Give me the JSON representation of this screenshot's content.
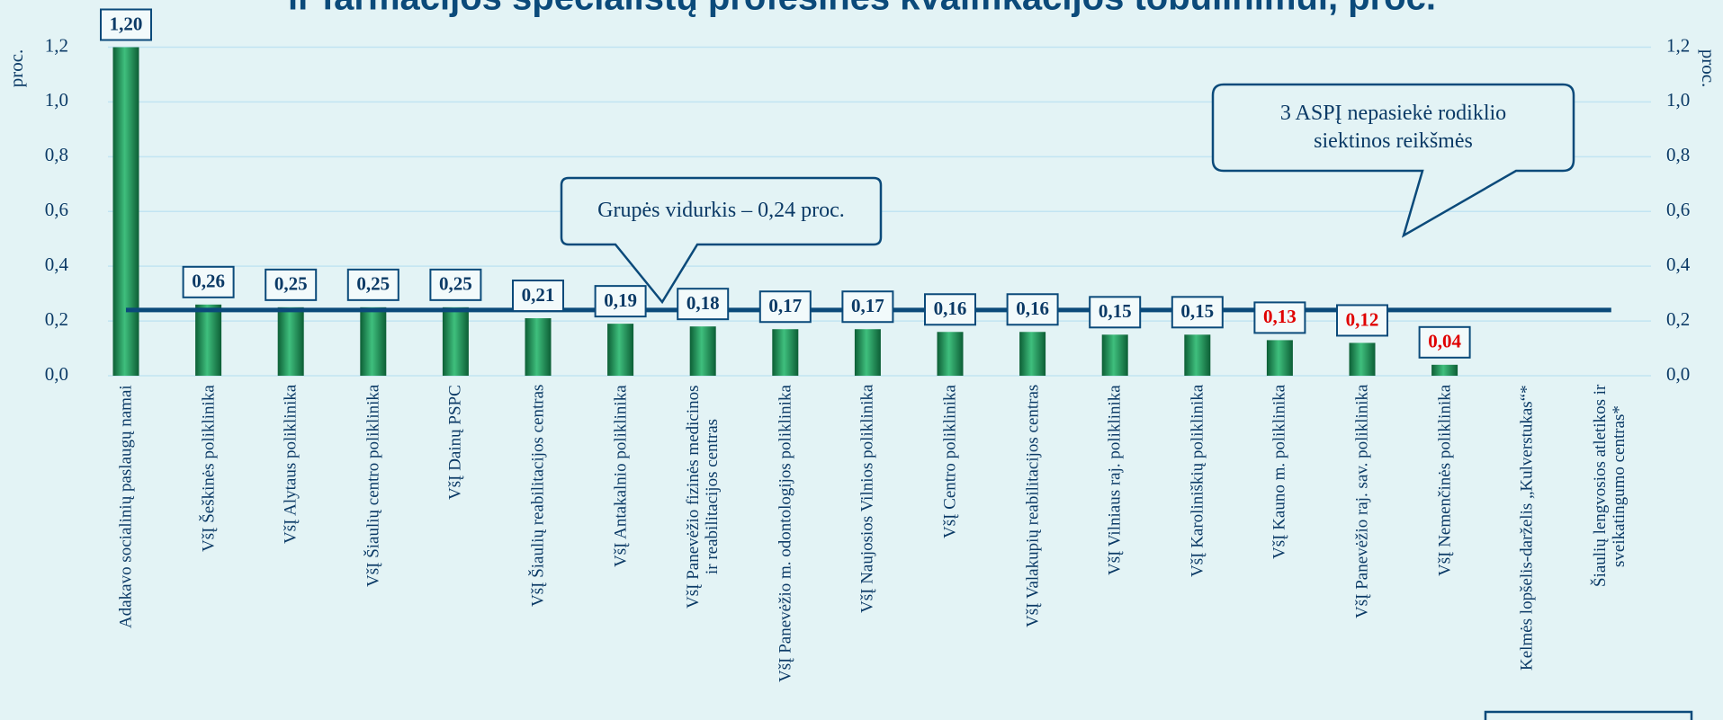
{
  "chart_data": {
    "type": "bar",
    "title": "ir farmacijos specialistų profesinės kvalifikacijos tobulinimui, proc.",
    "ylabel": "proc.",
    "y2label": "proc.",
    "categories": [
      "Adakavo socialinių paslaugų namai",
      "VšĮ Šeškinės poliklinika",
      "VšĮ Alytaus poliklinika",
      "VšĮ Šiaulių centro poliklinika",
      "VšĮ Dainų PSPC",
      "VšĮ Šiaulių reabilitacijos centras",
      "VšĮ Antakalnio poliklinika",
      "VšĮ Panevėžio fizinės medicinos\nir reabilitacijos centras",
      "VšĮ Panevėžio m. odontologijos poliklinika",
      "VšĮ Naujosios Vilnios poliklinika",
      "VšĮ Centro poliklinika",
      "VšĮ Valakupių reabilitacijos centras",
      "VšĮ Vilniaus raj. poliklinika",
      "VšĮ Karoliniškių poliklinika",
      "VšĮ Kauno m. poliklinika",
      "VšĮ Panevėžio raj. sav. poliklinika",
      "VšĮ Nemenčinės poliklinika",
      "Kelmės lopšelis-darželis „Kulverstukas“*",
      "Šiaulių lengvosios atletikos ir\nsveikatingumo centras*"
    ],
    "values": [
      1.2,
      0.26,
      0.25,
      0.25,
      0.25,
      0.21,
      0.19,
      0.18,
      0.17,
      0.17,
      0.16,
      0.16,
      0.15,
      0.15,
      0.13,
      0.12,
      0.04,
      null,
      null
    ],
    "value_labels": [
      "1,20",
      "0,26",
      "0,25",
      "0,25",
      "0,25",
      "0,21",
      "0,19",
      "0,18",
      "0,17",
      "0,17",
      "0,16",
      "0,16",
      "0,15",
      "0,15",
      "0,13",
      "0,12",
      "0,04",
      null,
      null
    ],
    "value_label_colors": [
      "#0b3a66",
      "#0b3a66",
      "#0b3a66",
      "#0b3a66",
      "#0b3a66",
      "#0b3a66",
      "#0b3a66",
      "#0b3a66",
      "#0b3a66",
      "#0b3a66",
      "#0b3a66",
      "#0b3a66",
      "#0b3a66",
      "#0b3a66",
      "#e00000",
      "#e00000",
      "#e00000",
      null,
      null
    ],
    "color": "#1e8a52",
    "average": 0.24,
    "average_color": "#0b4a7a",
    "ylim": [
      0,
      1.2
    ],
    "yticks": [
      {
        "value": 0,
        "label": "0,0"
      },
      {
        "value": 0.2,
        "label": "0,2"
      },
      {
        "value": 0.4,
        "label": "0,4"
      },
      {
        "value": 0.6,
        "label": "0,6"
      },
      {
        "value": 0.8,
        "label": "0,8"
      },
      {
        "value": 1,
        "label": "1,0"
      },
      {
        "value": 1.2,
        "label": "1,2"
      }
    ],
    "y2lim": [
      0,
      1.2
    ],
    "y2ticks": [
      {
        "value": 0,
        "label": "0,0"
      },
      {
        "value": 0.2,
        "label": "0,2"
      },
      {
        "value": 0.4,
        "label": "0,4"
      },
      {
        "value": 0.6,
        "label": "0,6"
      },
      {
        "value": 0.8,
        "label": "0,8"
      },
      {
        "value": 1,
        "label": "1,0"
      },
      {
        "value": 1.2,
        "label": "1,2"
      }
    ],
    "grid": true,
    "annotations": [
      {
        "text": "Grupės vidurkis – 0,24 proc."
      },
      {
        "text": "3 ASPĮ nepasiekė rodiklio\nsiektinos reikšmės"
      }
    ]
  }
}
